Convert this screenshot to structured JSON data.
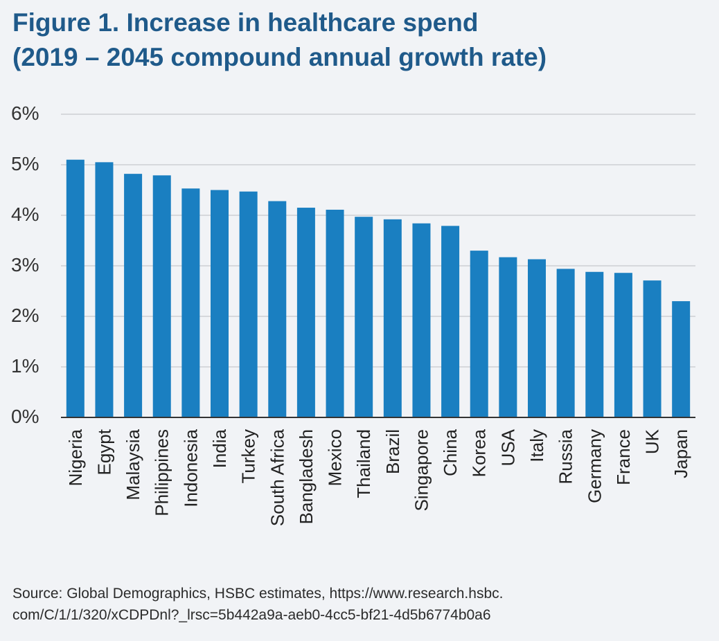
{
  "title_line1": "Figure 1. Increase in healthcare spend",
  "title_line2": "(2019 – 2045 compound annual growth rate)",
  "source_line1": "Source: Global Demographics, HSBC estimates, https://www.research.hsbc.",
  "source_line2": "com/C/1/1/320/xCDPDnl?_lrsc=5b442a9a-aeb0-4cc5-bf21-4d5b6774b0a6",
  "colors": {
    "bar": "#1a7fc1",
    "title": "#1f5a8a",
    "grid": "#c5c8cc",
    "background": "#f1f3f6"
  },
  "chart_data": {
    "type": "bar",
    "categories": [
      "Nigeria",
      "Egypt",
      "Malaysia",
      "Philippines",
      "Indonesia",
      "India",
      "Turkey",
      "South Africa",
      "Bangladesh",
      "Mexico",
      "Thailand",
      "Brazil",
      "Singapore",
      "China",
      "Korea",
      "USA",
      "Italy",
      "Russia",
      "Germany",
      "France",
      "UK",
      "Japan"
    ],
    "values": [
      5.1,
      5.05,
      4.82,
      4.79,
      4.53,
      4.5,
      4.47,
      4.28,
      4.15,
      4.11,
      3.97,
      3.92,
      3.84,
      3.79,
      3.3,
      3.17,
      3.13,
      2.94,
      2.88,
      2.86,
      2.71,
      2.3
    ],
    "yticks": [
      "0%",
      "1%",
      "2%",
      "3%",
      "4%",
      "5%",
      "6%"
    ],
    "ylim": [
      0,
      6
    ],
    "grid": true
  }
}
